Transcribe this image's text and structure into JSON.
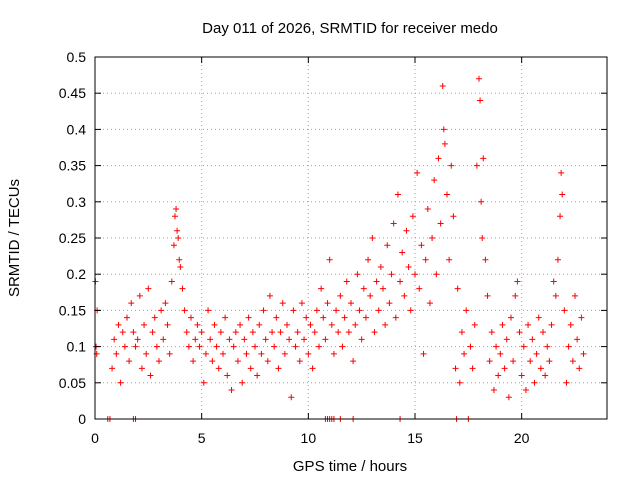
{
  "chart_data": {
    "type": "scatter",
    "title": "Day 011 of 2026, SRMTID for receiver medo",
    "xlabel": "GPS time / hours",
    "ylabel": "SRMTID / TECUs",
    "xlim": [
      0,
      24
    ],
    "ylim": [
      0,
      0.5
    ],
    "x_ticks": [
      0,
      5,
      10,
      15,
      20
    ],
    "x_tick_labels": [
      "0",
      "5",
      "10",
      "15",
      "20"
    ],
    "y_ticks": [
      0,
      0.05,
      0.1,
      0.15,
      0.2,
      0.25,
      0.3,
      0.35,
      0.4,
      0.45,
      0.5
    ],
    "y_tick_labels": [
      "0",
      "0.05",
      "0.1",
      "0.15",
      "0.2",
      "0.25",
      "0.3",
      "0.35",
      "0.4",
      "0.45",
      "0.5"
    ],
    "grid": true,
    "marker": "+",
    "color": "#ff0000",
    "series": [
      {
        "name": "SRMTID",
        "points": [
          [
            0.02,
            0.19
          ],
          [
            0.05,
            0.1
          ],
          [
            0.08,
            0.09
          ],
          [
            0.1,
            0.15
          ],
          [
            0.6,
            0.0
          ],
          [
            0.7,
            0.0
          ],
          [
            1.8,
            0.0
          ],
          [
            1.9,
            0.0
          ],
          [
            0.8,
            0.07
          ],
          [
            0.9,
            0.11
          ],
          [
            1.0,
            0.09
          ],
          [
            1.1,
            0.13
          ],
          [
            1.2,
            0.05
          ],
          [
            1.3,
            0.12
          ],
          [
            1.4,
            0.1
          ],
          [
            1.5,
            0.14
          ],
          [
            1.6,
            0.08
          ],
          [
            1.7,
            0.16
          ],
          [
            1.8,
            0.12
          ],
          [
            1.9,
            0.1
          ],
          [
            2.0,
            0.11
          ],
          [
            2.1,
            0.17
          ],
          [
            2.2,
            0.07
          ],
          [
            2.3,
            0.13
          ],
          [
            2.4,
            0.09
          ],
          [
            2.5,
            0.18
          ],
          [
            2.6,
            0.06
          ],
          [
            2.7,
            0.12
          ],
          [
            2.8,
            0.14
          ],
          [
            2.9,
            0.1
          ],
          [
            3.0,
            0.08
          ],
          [
            3.1,
            0.15
          ],
          [
            3.2,
            0.11
          ],
          [
            3.3,
            0.16
          ],
          [
            3.4,
            0.13
          ],
          [
            3.5,
            0.09
          ],
          [
            3.6,
            0.19
          ],
          [
            3.7,
            0.24
          ],
          [
            3.75,
            0.28
          ],
          [
            3.8,
            0.29
          ],
          [
            3.85,
            0.26
          ],
          [
            3.9,
            0.25
          ],
          [
            3.95,
            0.22
          ],
          [
            4.0,
            0.21
          ],
          [
            4.1,
            0.18
          ],
          [
            4.2,
            0.15
          ],
          [
            4.3,
            0.12
          ],
          [
            4.4,
            0.1
          ],
          [
            4.5,
            0.14
          ],
          [
            4.6,
            0.08
          ],
          [
            4.7,
            0.11
          ],
          [
            4.8,
            0.13
          ],
          [
            4.9,
            0.1
          ],
          [
            5.0,
            0.12
          ],
          [
            5.1,
            0.05
          ],
          [
            5.2,
            0.09
          ],
          [
            5.3,
            0.15
          ],
          [
            5.4,
            0.11
          ],
          [
            5.5,
            0.08
          ],
          [
            5.6,
            0.13
          ],
          [
            5.7,
            0.1
          ],
          [
            5.8,
            0.07
          ],
          [
            5.9,
            0.12
          ],
          [
            6.0,
            0.09
          ],
          [
            6.1,
            0.14
          ],
          [
            6.2,
            0.06
          ],
          [
            6.3,
            0.11
          ],
          [
            6.4,
            0.04
          ],
          [
            6.5,
            0.1
          ],
          [
            6.6,
            0.12
          ],
          [
            6.7,
            0.08
          ],
          [
            6.8,
            0.13
          ],
          [
            6.9,
            0.05
          ],
          [
            7.0,
            0.11
          ],
          [
            7.1,
            0.09
          ],
          [
            7.2,
            0.14
          ],
          [
            7.3,
            0.07
          ],
          [
            7.4,
            0.12
          ],
          [
            7.5,
            0.1
          ],
          [
            7.6,
            0.06
          ],
          [
            7.7,
            0.13
          ],
          [
            7.8,
            0.09
          ],
          [
            7.9,
            0.15
          ],
          [
            8.0,
            0.11
          ],
          [
            8.1,
            0.08
          ],
          [
            8.2,
            0.17
          ],
          [
            8.3,
            0.12
          ],
          [
            8.4,
            0.1
          ],
          [
            8.5,
            0.14
          ],
          [
            8.6,
            0.07
          ],
          [
            8.7,
            0.12
          ],
          [
            8.8,
            0.16
          ],
          [
            8.9,
            0.09
          ],
          [
            9.0,
            0.13
          ],
          [
            9.1,
            0.11
          ],
          [
            9.2,
            0.03
          ],
          [
            9.3,
            0.15
          ],
          [
            9.4,
            0.1
          ],
          [
            9.5,
            0.12
          ],
          [
            9.6,
            0.08
          ],
          [
            9.7,
            0.16
          ],
          [
            9.8,
            0.11
          ],
          [
            9.9,
            0.14
          ],
          [
            10.0,
            0.09
          ],
          [
            10.1,
            0.13
          ],
          [
            10.2,
            0.07
          ],
          [
            10.3,
            0.12
          ],
          [
            10.4,
            0.15
          ],
          [
            10.5,
            0.1
          ],
          [
            10.6,
            0.18
          ],
          [
            10.7,
            0.14
          ],
          [
            10.8,
            0.11
          ],
          [
            10.9,
            0.16
          ],
          [
            11.0,
            0.22
          ],
          [
            11.1,
            0.13
          ],
          [
            11.2,
            0.09
          ],
          [
            11.3,
            0.15
          ],
          [
            11.4,
            0.12
          ],
          [
            10.8,
            0.0
          ],
          [
            10.9,
            0.0
          ],
          [
            11.0,
            0.0
          ],
          [
            11.1,
            0.0
          ],
          [
            11.2,
            0.0
          ],
          [
            11.5,
            0.0
          ],
          [
            12.1,
            0.0
          ],
          [
            14.3,
            0.0
          ],
          [
            11.5,
            0.17
          ],
          [
            11.6,
            0.1
          ],
          [
            11.7,
            0.14
          ],
          [
            11.8,
            0.19
          ],
          [
            11.9,
            0.12
          ],
          [
            12.0,
            0.16
          ],
          [
            12.1,
            0.08
          ],
          [
            12.2,
            0.13
          ],
          [
            12.3,
            0.2
          ],
          [
            12.4,
            0.15
          ],
          [
            12.5,
            0.11
          ],
          [
            12.6,
            0.18
          ],
          [
            12.7,
            0.14
          ],
          [
            12.8,
            0.22
          ],
          [
            12.9,
            0.17
          ],
          [
            13.0,
            0.25
          ],
          [
            13.1,
            0.12
          ],
          [
            13.2,
            0.19
          ],
          [
            13.3,
            0.15
          ],
          [
            13.4,
            0.21
          ],
          [
            13.5,
            0.18
          ],
          [
            13.6,
            0.13
          ],
          [
            13.7,
            0.24
          ],
          [
            13.8,
            0.16
          ],
          [
            13.9,
            0.2
          ],
          [
            14.0,
            0.27
          ],
          [
            14.1,
            0.14
          ],
          [
            14.2,
            0.31
          ],
          [
            14.3,
            0.19
          ],
          [
            14.4,
            0.23
          ],
          [
            14.5,
            0.17
          ],
          [
            14.6,
            0.26
          ],
          [
            14.7,
            0.21
          ],
          [
            14.8,
            0.15
          ],
          [
            14.9,
            0.28
          ],
          [
            15.0,
            0.2
          ],
          [
            15.1,
            0.34
          ],
          [
            15.2,
            0.18
          ],
          [
            15.3,
            0.24
          ],
          [
            15.4,
            0.09
          ],
          [
            15.5,
            0.22
          ],
          [
            15.6,
            0.29
          ],
          [
            15.7,
            0.16
          ],
          [
            15.8,
            0.25
          ],
          [
            15.9,
            0.33
          ],
          [
            16.0,
            0.2
          ],
          [
            16.1,
            0.36
          ],
          [
            16.2,
            0.27
          ],
          [
            16.3,
            0.46
          ],
          [
            16.35,
            0.4
          ],
          [
            16.4,
            0.38
          ],
          [
            16.5,
            0.31
          ],
          [
            16.6,
            0.22
          ],
          [
            16.7,
            0.35
          ],
          [
            16.8,
            0.28
          ],
          [
            16.9,
            0.07
          ],
          [
            16.95,
            0.0
          ],
          [
            17.0,
            0.18
          ],
          [
            17.1,
            0.05
          ],
          [
            17.2,
            0.12
          ],
          [
            17.3,
            0.09
          ],
          [
            17.4,
            0.15
          ],
          [
            17.5,
            0.0
          ],
          [
            17.6,
            0.1
          ],
          [
            17.7,
            0.07
          ],
          [
            17.8,
            0.13
          ],
          [
            17.9,
            0.35
          ],
          [
            18.0,
            0.47
          ],
          [
            18.05,
            0.44
          ],
          [
            18.1,
            0.3
          ],
          [
            18.15,
            0.25
          ],
          [
            18.2,
            0.36
          ],
          [
            18.3,
            0.22
          ],
          [
            18.4,
            0.17
          ],
          [
            18.5,
            0.08
          ],
          [
            18.6,
            0.12
          ],
          [
            18.7,
            0.04
          ],
          [
            18.8,
            0.1
          ],
          [
            18.9,
            0.06
          ],
          [
            19.0,
            0.09
          ],
          [
            19.1,
            0.13
          ],
          [
            19.2,
            0.07
          ],
          [
            19.3,
            0.11
          ],
          [
            19.4,
            0.03
          ],
          [
            19.5,
            0.14
          ],
          [
            19.6,
            0.08
          ],
          [
            19.7,
            0.17
          ],
          [
            19.8,
            0.19
          ],
          [
            19.9,
            0.12
          ],
          [
            20.0,
            0.06
          ],
          [
            20.1,
            0.1
          ],
          [
            20.2,
            0.04
          ],
          [
            20.3,
            0.13
          ],
          [
            20.4,
            0.08
          ],
          [
            20.5,
            0.11
          ],
          [
            20.6,
            0.05
          ],
          [
            20.7,
            0.09
          ],
          [
            20.8,
            0.14
          ],
          [
            20.9,
            0.07
          ],
          [
            21.0,
            0.12
          ],
          [
            21.1,
            0.06
          ],
          [
            21.2,
            0.1
          ],
          [
            21.3,
            0.08
          ],
          [
            21.4,
            0.13
          ],
          [
            21.5,
            0.19
          ],
          [
            21.6,
            0.17
          ],
          [
            21.7,
            0.22
          ],
          [
            21.8,
            0.28
          ],
          [
            21.85,
            0.34
          ],
          [
            21.9,
            0.31
          ],
          [
            22.0,
            0.15
          ],
          [
            22.1,
            0.05
          ],
          [
            22.2,
            0.1
          ],
          [
            22.3,
            0.13
          ],
          [
            22.4,
            0.08
          ],
          [
            22.5,
            0.17
          ],
          [
            22.6,
            0.11
          ],
          [
            22.7,
            0.07
          ],
          [
            22.8,
            0.14
          ],
          [
            22.9,
            0.09
          ]
        ]
      }
    ]
  }
}
